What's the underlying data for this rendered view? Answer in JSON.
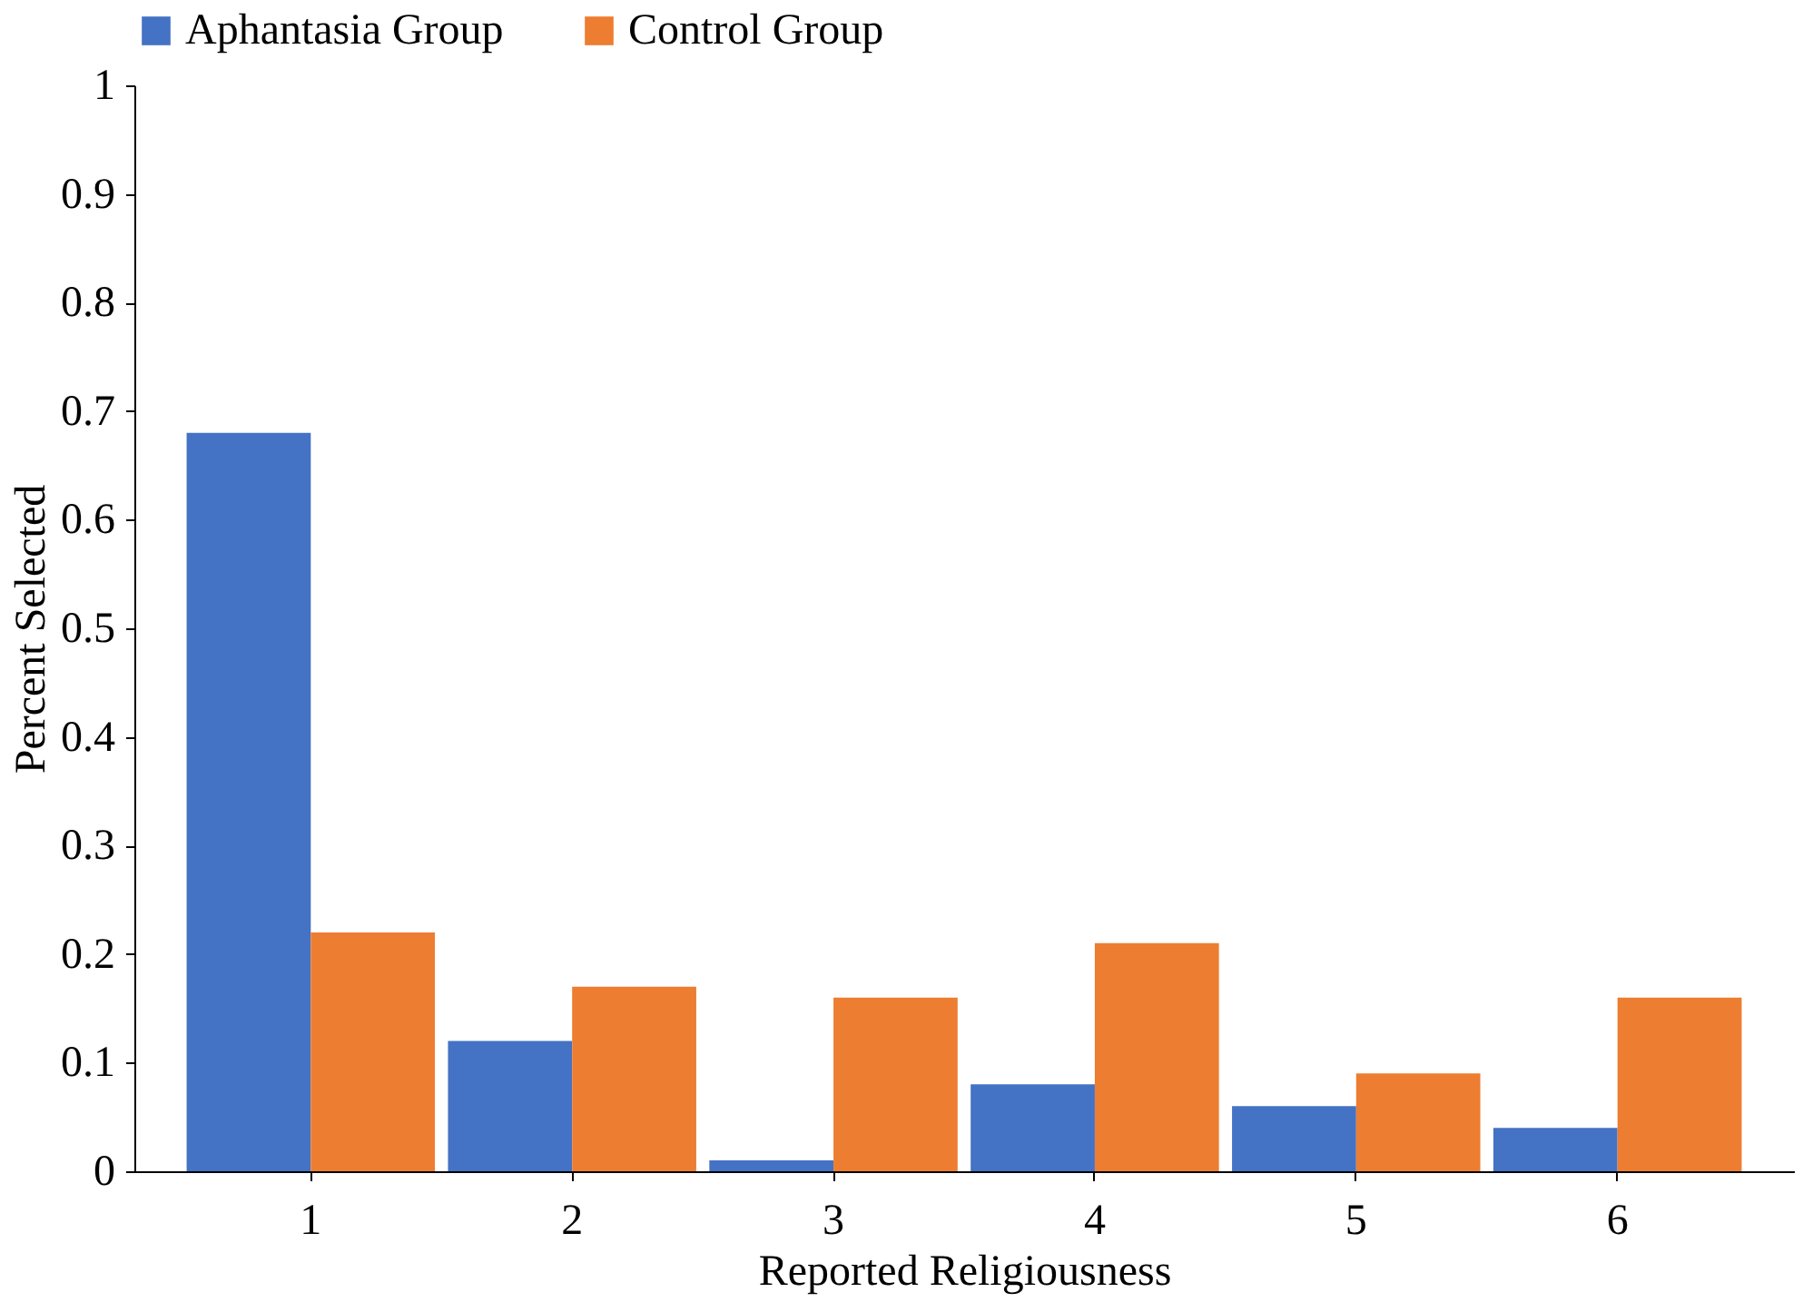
{
  "chart_data": {
    "type": "bar",
    "xlabel": "Reported Religiousness",
    "ylabel": "Percent Selected",
    "categories": [
      "1",
      "2",
      "3",
      "4",
      "5",
      "6"
    ],
    "series": [
      {
        "name": "Aphantasia Group",
        "color": "#4472c4",
        "values": [
          0.68,
          0.12,
          0.01,
          0.08,
          0.06,
          0.04
        ]
      },
      {
        "name": "Control Group",
        "color": "#ed7d31",
        "values": [
          0.22,
          0.17,
          0.16,
          0.21,
          0.09,
          0.16
        ]
      }
    ],
    "ylim": [
      0,
      1
    ],
    "yticks": [
      0,
      0.1,
      0.2,
      0.3,
      0.4,
      0.5,
      0.6,
      0.7,
      0.8,
      0.9,
      1
    ],
    "grid": false,
    "legend": "top"
  }
}
